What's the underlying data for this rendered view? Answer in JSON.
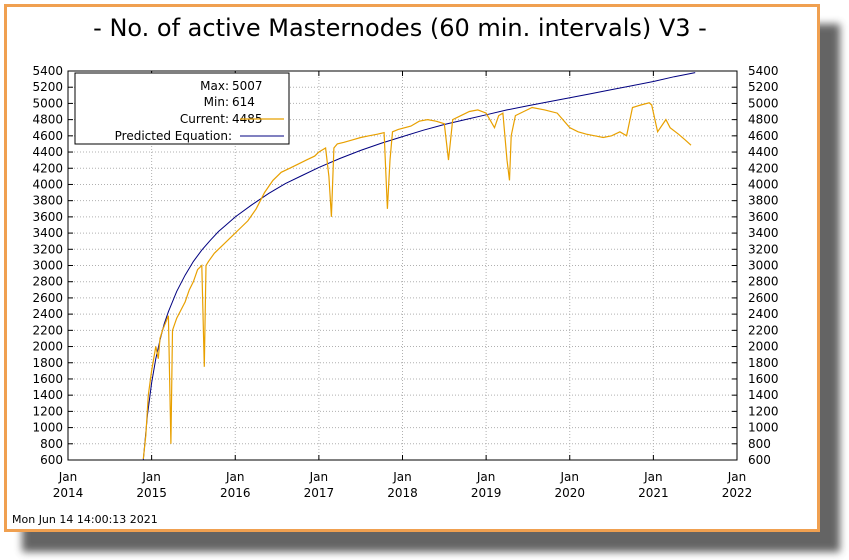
{
  "title": "- No. of active Masternodes (60 min. intervals) V3 -",
  "footer_timestamp": "Mon Jun 14 14:00:13 2021",
  "legend": {
    "max_label": "Max:",
    "max_value": "5007",
    "min_label": "Min:",
    "min_value": "614",
    "current_label": "Current:",
    "current_value": "4485",
    "predicted_label": "Predicted Equation:"
  },
  "colors": {
    "border": "#f0a050",
    "actual": "#e8a000",
    "predicted": "#000080",
    "grid": "#b0b0b0"
  },
  "chart_data": {
    "type": "line",
    "title": "- No. of active Masternodes (60 min. intervals) V3 -",
    "ylim": [
      600,
      5400
    ],
    "xlim": [
      "2014-01",
      "2022-01"
    ],
    "y_ticks": [
      600,
      800,
      1000,
      1200,
      1400,
      1600,
      1800,
      2000,
      2200,
      2400,
      2600,
      2800,
      3000,
      3200,
      3400,
      3600,
      3800,
      4000,
      4200,
      4400,
      4600,
      4800,
      5000,
      5200,
      5400
    ],
    "x_ticks": [
      {
        "month": "Jan",
        "year": "2014",
        "x": 2014.0
      },
      {
        "month": "Jan",
        "year": "2015",
        "x": 2015.0
      },
      {
        "month": "Jan",
        "year": "2016",
        "x": 2016.0
      },
      {
        "month": "Jan",
        "year": "2017",
        "x": 2017.0
      },
      {
        "month": "Jan",
        "year": "2018",
        "x": 2018.0
      },
      {
        "month": "Jan",
        "year": "2019",
        "x": 2019.0
      },
      {
        "month": "Jan",
        "year": "2020",
        "x": 2020.0
      },
      {
        "month": "Jan",
        "year": "2021",
        "x": 2021.0
      },
      {
        "month": "Jan",
        "year": "2022",
        "x": 2022.0
      }
    ],
    "grid": true,
    "legend_position": "top-left",
    "series": [
      {
        "name": "Current",
        "x": [
          2014.9,
          2014.93,
          2014.96,
          2015.0,
          2015.05,
          2015.08,
          2015.1,
          2015.13,
          2015.17,
          2015.2,
          2015.23,
          2015.25,
          2015.3,
          2015.35,
          2015.4,
          2015.45,
          2015.5,
          2015.55,
          2015.6,
          2015.63,
          2015.65,
          2015.68,
          2015.75,
          2015.85,
          2015.95,
          2016.05,
          2016.15,
          2016.25,
          2016.35,
          2016.45,
          2016.55,
          2016.65,
          2016.75,
          2016.85,
          2016.95,
          2017.0,
          2017.08,
          2017.12,
          2017.15,
          2017.18,
          2017.22,
          2017.3,
          2017.4,
          2017.5,
          2017.6,
          2017.7,
          2017.78,
          2017.82,
          2017.85,
          2017.88,
          2017.95,
          2018.1,
          2018.2,
          2018.3,
          2018.4,
          2018.5,
          2018.55,
          2018.6,
          2018.7,
          2018.8,
          2018.9,
          2019.0,
          2019.1,
          2019.15,
          2019.2,
          2019.25,
          2019.28,
          2019.3,
          2019.35,
          2019.45,
          2019.55,
          2019.7,
          2019.85,
          2020.0,
          2020.1,
          2020.2,
          2020.3,
          2020.4,
          2020.5,
          2020.6,
          2020.68,
          2020.75,
          2020.85,
          2020.95,
          2020.98,
          2021.05,
          2021.15,
          2021.2,
          2021.3,
          2021.38,
          2021.45
        ],
        "values": [
          614,
          900,
          1400,
          1700,
          2000,
          1850,
          2100,
          2200,
          2300,
          2380,
          800,
          2200,
          2350,
          2450,
          2550,
          2700,
          2800,
          2950,
          3000,
          1750,
          3000,
          3050,
          3150,
          3250,
          3350,
          3450,
          3550,
          3700,
          3900,
          4050,
          4150,
          4200,
          4250,
          4300,
          4350,
          4400,
          4450,
          4100,
          3600,
          4450,
          4500,
          4520,
          4550,
          4580,
          4600,
          4620,
          4640,
          3700,
          4300,
          4650,
          4680,
          4720,
          4780,
          4800,
          4780,
          4750,
          4300,
          4800,
          4850,
          4900,
          4920,
          4880,
          4700,
          4850,
          4880,
          4300,
          4050,
          4600,
          4850,
          4900,
          4950,
          4920,
          4880,
          4700,
          4650,
          4620,
          4600,
          4580,
          4600,
          4650,
          4600,
          4950,
          4980,
          5007,
          4980,
          4650,
          4800,
          4700,
          4620,
          4550,
          4485
        ]
      },
      {
        "name": "Predicted Equation",
        "x": [
          2014.9,
          2014.95,
          2015.0,
          2015.05,
          2015.1,
          2015.15,
          2015.2,
          2015.3,
          2015.4,
          2015.5,
          2015.6,
          2015.7,
          2015.8,
          2015.9,
          2016.0,
          2016.2,
          2016.4,
          2016.6,
          2016.8,
          2017.0,
          2017.25,
          2017.5,
          2017.75,
          2018.0,
          2018.25,
          2018.5,
          2018.75,
          2019.0,
          2019.25,
          2019.5,
          2019.75,
          2020.0,
          2020.25,
          2020.5,
          2020.75,
          2021.0,
          2021.25,
          2021.5
        ],
        "values": [
          600,
          1150,
          1550,
          1850,
          2080,
          2280,
          2430,
          2680,
          2880,
          3050,
          3190,
          3310,
          3420,
          3510,
          3600,
          3750,
          3890,
          4010,
          4110,
          4210,
          4320,
          4420,
          4510,
          4590,
          4670,
          4740,
          4800,
          4860,
          4920,
          4970,
          5020,
          5070,
          5120,
          5170,
          5220,
          5270,
          5330,
          5380
        ]
      }
    ]
  }
}
